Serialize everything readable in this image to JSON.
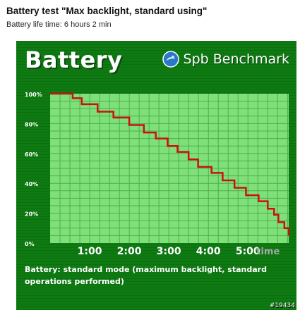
{
  "header": {
    "title": "Battery test \"Max backlight, standard using\"",
    "subtitle": "Battery life time: 6 hours 2 min"
  },
  "panel": {
    "title": "Battery",
    "brand_text": "Spb Benchmark",
    "brand_icon": "spb-logo-icon",
    "caption": "Battery: standard mode (maximum backlight, standard operations performed)",
    "watermark": "#19434"
  },
  "colors": {
    "panel_bg": "#0e7a12",
    "plot_bg": "#7fe07a",
    "grid": "#4caf48",
    "line": "#cc1010",
    "text": "#ffffff"
  },
  "chart_data": {
    "type": "line",
    "title": "Battery",
    "xlabel": "Time",
    "ylabel": "",
    "x_ticks": [
      "1:00",
      "2:00",
      "3:00",
      "4:00",
      "5:00"
    ],
    "x_unit_label": "time",
    "y_ticks": [
      "100%",
      "80%",
      "60%",
      "40%",
      "20%",
      "0%"
    ],
    "ylim": [
      0,
      100
    ],
    "xlim_hours": [
      0,
      6.03
    ],
    "grid": true,
    "step": true,
    "series": [
      {
        "name": "Battery",
        "x_hours": [
          0,
          0.57,
          0.8,
          1.2,
          1.6,
          2.0,
          2.37,
          2.67,
          2.97,
          3.22,
          3.5,
          3.74,
          4.08,
          4.36,
          4.66,
          4.95,
          5.27,
          5.5,
          5.66,
          5.77,
          5.92,
          6.03
        ],
        "y_percent": [
          100,
          97,
          93,
          88,
          84,
          79,
          74,
          70,
          65,
          61,
          56,
          51,
          47,
          42,
          37,
          32,
          28,
          23,
          19,
          14,
          10,
          5
        ]
      }
    ]
  }
}
